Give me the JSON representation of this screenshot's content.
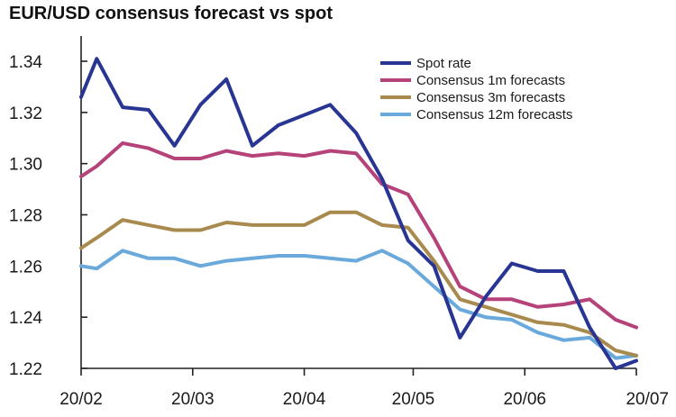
{
  "chart_data": {
    "type": "line",
    "title": "EUR/USD consensus forecast vs spot",
    "xlabel": "",
    "ylabel": "",
    "ylim": [
      1.22,
      1.345
    ],
    "y_ticks": [
      "1.22",
      "1.24",
      "1.26",
      "1.28",
      "1.30",
      "1.32",
      "1.34"
    ],
    "y_tick_values": [
      1.22,
      1.24,
      1.26,
      1.28,
      1.3,
      1.32,
      1.34
    ],
    "x_ticks": [
      "20/02",
      "20/03",
      "20/04",
      "20/05",
      "20/06",
      "20/07"
    ],
    "x_tick_positions": [
      0,
      4.3,
      8.6,
      12.8,
      17.1,
      21.4
    ],
    "x": [
      0,
      0.6,
      1.6,
      2.6,
      3.6,
      4.6,
      5.6,
      6.6,
      7.6,
      8.6,
      9.6,
      10.6,
      11.6,
      12.6,
      13.6,
      14.6,
      15.6,
      16.6,
      17.6,
      18.6,
      19.6,
      20.6,
      21.4
    ],
    "legend_position": "top-right",
    "series": [
      {
        "name": "Spot rate",
        "color": "#283593",
        "values": [
          1.326,
          1.341,
          1.322,
          1.321,
          1.307,
          1.323,
          1.333,
          1.307,
          1.315,
          1.319,
          1.323,
          1.312,
          1.294,
          1.27,
          1.26,
          1.232,
          1.248,
          1.261,
          1.258,
          1.258,
          1.236,
          1.22,
          1.223
        ]
      },
      {
        "name": "Consensus 1m forecasts",
        "color": "#b5437a",
        "values": [
          1.295,
          1.299,
          1.308,
          1.306,
          1.302,
          1.302,
          1.305,
          1.303,
          1.304,
          1.303,
          1.305,
          1.304,
          1.292,
          1.288,
          1.271,
          1.252,
          1.247,
          1.247,
          1.244,
          1.245,
          1.247,
          1.239,
          1.236
        ]
      },
      {
        "name": "Consensus 3m forecasts",
        "color": "#a88a4e",
        "values": [
          1.267,
          1.271,
          1.278,
          1.276,
          1.274,
          1.274,
          1.277,
          1.276,
          1.276,
          1.276,
          1.281,
          1.281,
          1.276,
          1.275,
          1.262,
          1.247,
          1.244,
          1.241,
          1.238,
          1.237,
          1.234,
          1.227,
          1.225
        ]
      },
      {
        "name": "Consensus 12m forecasts",
        "color": "#6aa9dc",
        "values": [
          1.26,
          1.259,
          1.266,
          1.263,
          1.263,
          1.26,
          1.262,
          1.263,
          1.264,
          1.264,
          1.263,
          1.262,
          1.266,
          1.261,
          1.252,
          1.243,
          1.24,
          1.239,
          1.234,
          1.231,
          1.232,
          1.224,
          1.225
        ]
      }
    ]
  }
}
